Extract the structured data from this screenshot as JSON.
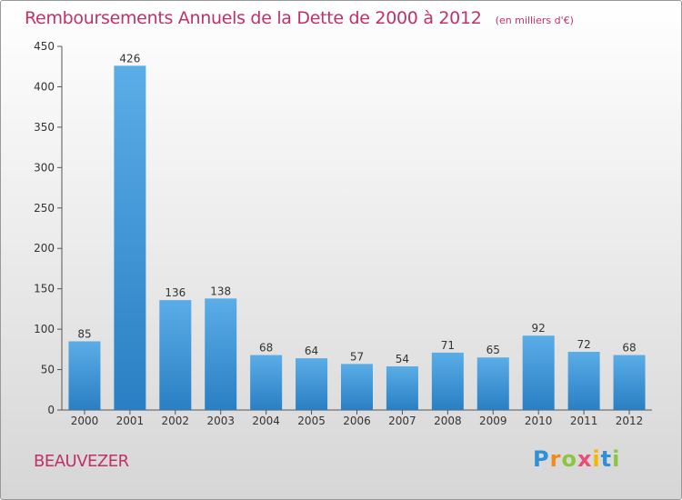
{
  "chart_title": "Remboursements Annuels de la Dette de 2000 à 2012",
  "chart_subtitle": "(en milliers d'€)",
  "commune": "BEAUVEZER",
  "logo": {
    "text": "Proxiti",
    "letters": [
      {
        "ch": "P",
        "color": "#2f8fd8"
      },
      {
        "ch": "r",
        "color": "#f08a1c"
      },
      {
        "ch": "o",
        "color": "#8cc63f"
      },
      {
        "ch": "x",
        "color": "#e94e77"
      },
      {
        "ch": "i",
        "color": "#f7b500"
      },
      {
        "ch": "t",
        "color": "#2f8fd8"
      },
      {
        "ch": "i",
        "color": "#8cc63f"
      }
    ]
  },
  "chart_data": {
    "type": "bar",
    "title": "Remboursements Annuels de la Dette de 2000 à 2012",
    "subtitle": "(en milliers d'€)",
    "xlabel": "",
    "ylabel": "",
    "categories": [
      "2000",
      "2001",
      "2002",
      "2003",
      "2004",
      "2005",
      "2006",
      "2007",
      "2008",
      "2009",
      "2010",
      "2011",
      "2012"
    ],
    "values": [
      85,
      426,
      136,
      138,
      68,
      64,
      57,
      54,
      71,
      65,
      92,
      72,
      68
    ],
    "ylim": [
      0,
      450
    ],
    "yticks": [
      0,
      50,
      100,
      150,
      200,
      250,
      300,
      350,
      400,
      450
    ],
    "grid": false,
    "bar_color_top": "#5aade6",
    "bar_color_bottom": "#2a7fc4"
  }
}
